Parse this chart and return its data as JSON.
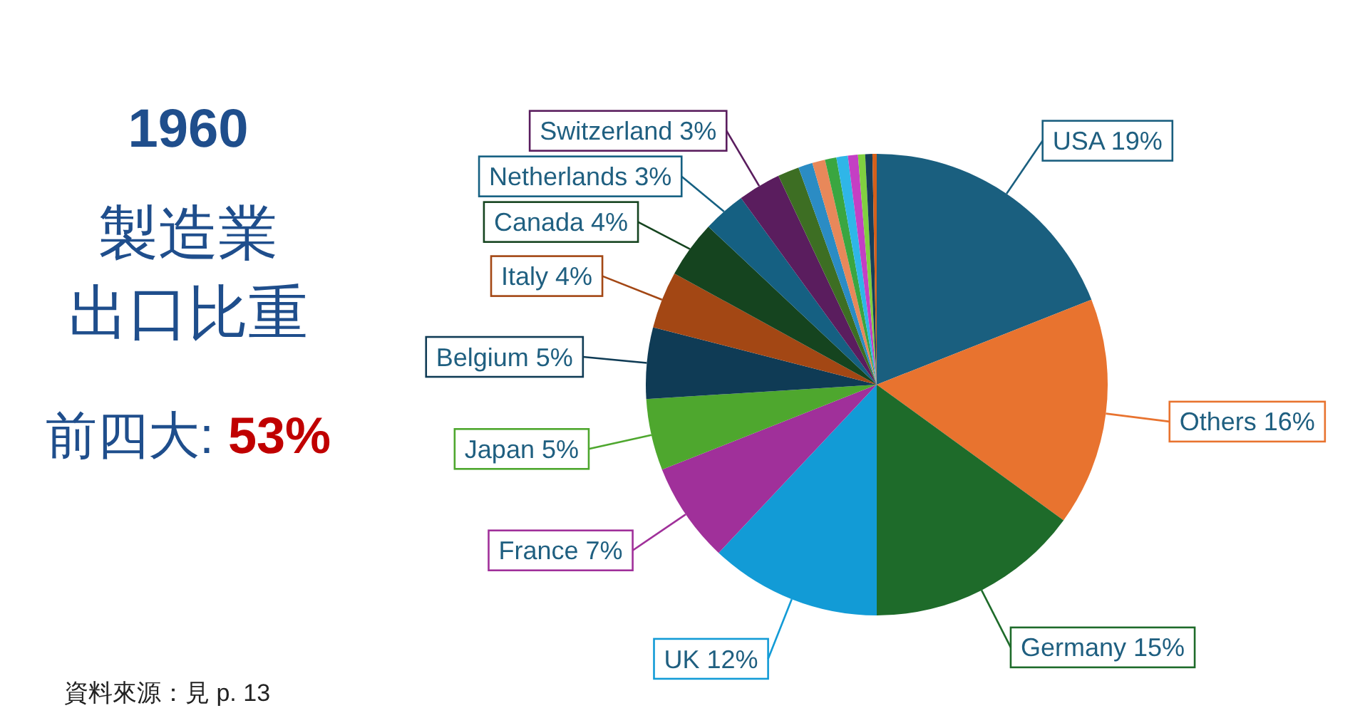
{
  "chart_data": {
    "type": "pie",
    "title": "1960",
    "subtitle": "製造業出口比重",
    "annotations": [
      "前四大: **53%**",
      "資料來源：見 p. 13"
    ],
    "categories": [
      "USA",
      "Others",
      "Germany",
      "UK",
      "France",
      "Japan",
      "Belgium",
      "Italy",
      "Canada",
      "Netherlands",
      "Switzerland",
      null,
      null,
      null,
      null,
      null,
      null,
      null,
      null,
      null
    ],
    "values": [
      19,
      16,
      15,
      12,
      7,
      5,
      5,
      4,
      4,
      3,
      3,
      1.5,
      1,
      0.9,
      0.8,
      0.8,
      0.7,
      0.5,
      0.5,
      0.3
    ],
    "value_labels": [
      "19%",
      "16%",
      "15%",
      "12%",
      "7%",
      "5%",
      "5%",
      "4%",
      "4%",
      "3%",
      "3%",
      null,
      null,
      null,
      null,
      null,
      null,
      null,
      null,
      null
    ],
    "colors": [
      "#1a5f7f",
      "#e8732f",
      "#1e6b2a",
      "#129bd6",
      "#a0309a",
      "#4ea72e",
      "#0f3b55",
      "#a34714",
      "#15441f",
      "#156082",
      "#5a1d5e",
      "#3d6e23",
      "#2b8cc4",
      "#e8885a",
      "#3aa640",
      "#2fb6e8",
      "#c43fc4",
      "#80d040",
      "#153f5a",
      "#d55f1a"
    ]
  }
}
